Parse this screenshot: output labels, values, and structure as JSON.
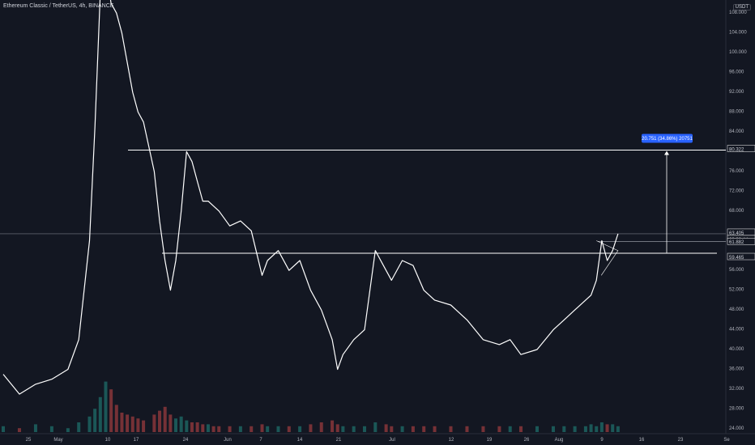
{
  "header": {
    "title": "Ethereum Classic / TetherUS, 4h, BINANCE",
    "currency": "USDT"
  },
  "colors": {
    "background": "#131722",
    "line": "#ffffff",
    "axis_text": "#b2b5be",
    "volume_up": "#26a69a",
    "volume_down": "#ef5350",
    "measure_box": "#2962ff"
  },
  "chart_data": {
    "type": "line",
    "y_axis_ticks": [
      "108.000",
      "104.000",
      "100.000",
      "96.000",
      "92.000",
      "88.000",
      "84.000",
      "80.322",
      "76.000",
      "72.000",
      "68.000",
      "63.405",
      "03:32:44",
      "61.882",
      "59.465",
      "56.000",
      "52.000",
      "48.000",
      "44.000",
      "40.000",
      "36.000",
      "32.000",
      "28.000",
      "24.000"
    ],
    "x_axis_ticks": [
      "25",
      "May",
      "10",
      "17",
      "24",
      "Jun",
      "7",
      "14",
      "21",
      "Jul",
      "12",
      "19",
      "26",
      "Aug",
      "9",
      "16",
      "23",
      "Se"
    ],
    "ylim": [
      23,
      110
    ],
    "x": [
      "Apr 20",
      "Apr 23",
      "Apr 26",
      "Apr 29",
      "May 2",
      "May 4",
      "May 6",
      "May 7",
      "May 8",
      "May 9",
      "May 10",
      "May 11",
      "May 12",
      "May 13",
      "May 14",
      "May 15",
      "May 16",
      "May 18",
      "May 19",
      "May 20",
      "May 21",
      "May 22",
      "May 23",
      "May 24",
      "May 25",
      "May 26",
      "May 27",
      "May 28",
      "May 29",
      "May 30",
      "Jun 1",
      "Jun 3",
      "Jun 5",
      "Jun 7",
      "Jun 8",
      "Jun 10",
      "Jun 12",
      "Jun 14",
      "Jun 16",
      "Jun 18",
      "Jun 20",
      "Jun 21",
      "Jun 22",
      "Jun 24",
      "Jun 26",
      "Jun 28",
      "Jun 30",
      "Jul 1",
      "Jul 3",
      "Jul 5",
      "Jul 7",
      "Jul 9",
      "Jul 12",
      "Jul 15",
      "Jul 18",
      "Jul 21",
      "Jul 23",
      "Jul 25",
      "Jul 28",
      "Jul 31",
      "Aug 2",
      "Aug 4",
      "Aug 6",
      "Aug 7",
      "Aug 8",
      "Aug 9",
      "Aug 10",
      "Aug 11",
      "Aug 12"
    ],
    "series": [
      {
        "values": [
          35,
          31,
          33,
          34,
          36,
          42,
          62,
          85,
          112,
          117,
          110,
          108,
          104,
          98,
          92,
          88,
          86,
          76,
          66,
          58,
          52,
          58,
          68,
          80,
          78,
          74,
          70,
          70,
          69,
          68,
          65,
          66,
          64,
          55,
          58,
          60,
          56,
          58,
          52,
          48,
          42,
          36,
          39,
          42,
          44,
          60,
          56,
          54,
          58,
          57,
          52,
          50,
          49,
          46,
          42,
          41,
          42,
          39,
          40,
          44,
          46,
          48,
          50,
          51,
          54,
          62,
          58,
          60,
          63.405
        ]
      }
    ],
    "volume": [
      3,
      2,
      4,
      3,
      2,
      5,
      8,
      12,
      18,
      26,
      22,
      14,
      10,
      9,
      8,
      7,
      6,
      9,
      11,
      13,
      9,
      7,
      8,
      6,
      5,
      5,
      4,
      4,
      3,
      3,
      3,
      3,
      3,
      4,
      3,
      3,
      3,
      3,
      4,
      5,
      6,
      4,
      3,
      3,
      3,
      5,
      4,
      3,
      3,
      3,
      3,
      3,
      3,
      3,
      3,
      3,
      3,
      3,
      3,
      3,
      3,
      3,
      3,
      4,
      3,
      5,
      4,
      4,
      3
    ],
    "annotations": {
      "resistance": "80.322",
      "current_price": "63.405",
      "countdown": "03:32:44",
      "level_mid": "61.882",
      "level_support": "59.465",
      "measure": "20.751 (34.86%) 20751"
    }
  }
}
